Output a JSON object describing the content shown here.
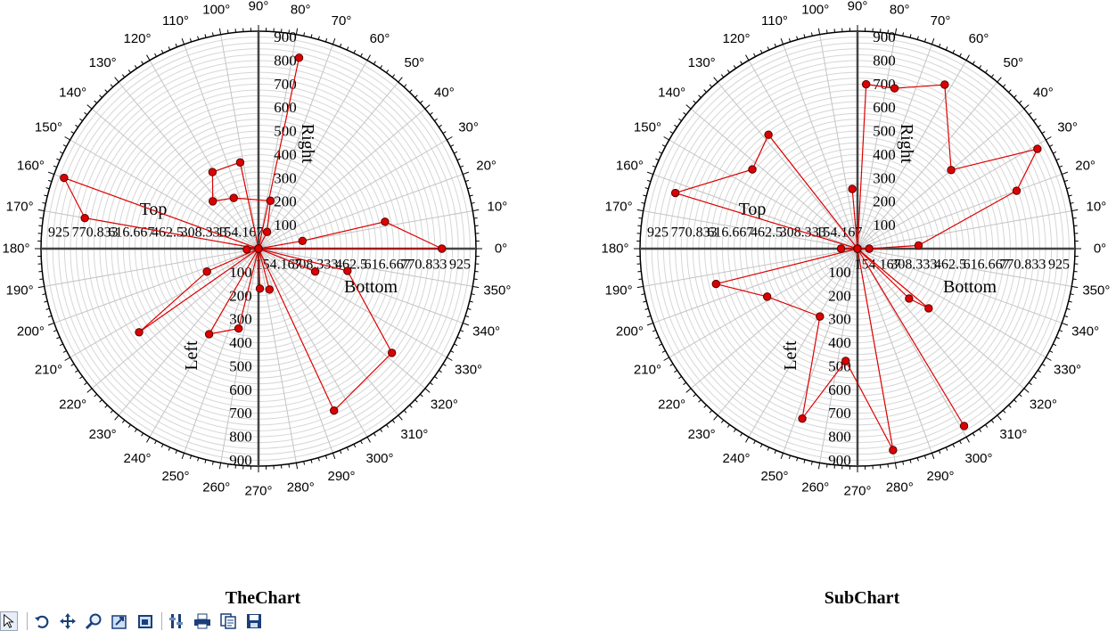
{
  "chart_data": [
    {
      "type": "polar-scatter-line",
      "title": "TheChart",
      "color": "#dd0000",
      "angle_labels": [
        "0°",
        "10°",
        "20°",
        "30°",
        "40°",
        "50°",
        "60°",
        "70°",
        "80°",
        "90°",
        "100°",
        "110°",
        "120°",
        "130°",
        "140°",
        "150°",
        "160°",
        "170°",
        "180°",
        "190°",
        "200°",
        "210°",
        "220°",
        "230°",
        "240°",
        "250°",
        "260°",
        "270°",
        "280°",
        "290°",
        "300°",
        "310°",
        "320°",
        "330°",
        "340°",
        "350°"
      ],
      "axes": {
        "right": {
          "title": "Right",
          "ticks": [
            "100",
            "200",
            "300",
            "400",
            "500",
            "600",
            "700",
            "800",
            "900"
          ]
        },
        "left": {
          "title": "Left",
          "ticks": [
            "100",
            "200",
            "300",
            "400",
            "500",
            "600",
            "700",
            "800",
            "900"
          ]
        },
        "top": {
          "title": "Top",
          "ticks": [
            "925",
            "770.833",
            "616.667",
            "462.5",
            "308.333",
            "154.167"
          ]
        },
        "bottom": {
          "title": "Bottom",
          "ticks": [
            "154.167",
            "308.333",
            "462.5",
            "616.667",
            "770.833",
            "925"
          ]
        }
      },
      "rmax": 925,
      "points": [
        {
          "theta": 0,
          "r": 0
        },
        {
          "theta": 63,
          "r": 80
        },
        {
          "theta": 76,
          "r": 210
        },
        {
          "theta": 116,
          "r": 240
        },
        {
          "theta": 134,
          "r": 280
        },
        {
          "theta": 121,
          "r": 380
        },
        {
          "theta": 102,
          "r": 375
        },
        {
          "theta": 0,
          "r": 0
        },
        {
          "theta": 160,
          "r": 880
        },
        {
          "theta": 170,
          "r": 750
        },
        {
          "theta": 0,
          "r": 0
        },
        {
          "theta": 78,
          "r": 830
        },
        {
          "theta": 0,
          "r": 0
        },
        {
          "theta": 10,
          "r": 190
        },
        {
          "theta": 12,
          "r": 550
        },
        {
          "theta": 0,
          "r": 780
        },
        {
          "theta": 0,
          "r": 0
        },
        {
          "theta": 184,
          "r": 50
        },
        {
          "theta": 0,
          "r": 0
        },
        {
          "theta": 204,
          "r": 240
        },
        {
          "theta": 215,
          "r": 620
        },
        {
          "theta": 0,
          "r": 0
        },
        {
          "theta": 240,
          "r": 420
        },
        {
          "theta": 256,
          "r": 350
        },
        {
          "theta": 0,
          "r": 0
        },
        {
          "theta": 272,
          "r": 170
        },
        {
          "theta": 0,
          "r": 0
        },
        {
          "theta": 346,
          "r": 390
        },
        {
          "theta": 322,
          "r": 720
        },
        {
          "theta": 295,
          "r": 760
        },
        {
          "theta": 0,
          "r": 0
        },
        {
          "theta": 338,
          "r": 260
        },
        {
          "theta": 0,
          "r": 0
        },
        {
          "theta": 285,
          "r": 180
        }
      ]
    },
    {
      "type": "polar-scatter-line",
      "title": "SubChart",
      "color": "#dd0000",
      "angle_labels": [
        "0°",
        "10°",
        "20°",
        "30°",
        "40°",
        "50°",
        "60°",
        "70°",
        "80°",
        "90°",
        "100°",
        "110°",
        "120°",
        "130°",
        "140°",
        "150°",
        "160°",
        "170°",
        "180°",
        "190°",
        "200°",
        "210°",
        "220°",
        "230°",
        "240°",
        "250°",
        "260°",
        "270°",
        "280°",
        "290°",
        "300°",
        "310°",
        "320°",
        "330°",
        "340°",
        "350°"
      ],
      "axes": {
        "right": {
          "title": "Right",
          "ticks": [
            "100",
            "200",
            "300",
            "400",
            "500",
            "600",
            "700",
            "800",
            "900"
          ]
        },
        "left": {
          "title": "Left",
          "ticks": [
            "100",
            "200",
            "300",
            "400",
            "500",
            "600",
            "700",
            "800",
            "900"
          ]
        },
        "top": {
          "title": "Top",
          "ticks": [
            "925",
            "770.833",
            "616.667",
            "462.5",
            "308.333",
            "154.167"
          ]
        },
        "bottom": {
          "title": "Bottom",
          "ticks": [
            "154.167",
            "308.333",
            "462.5",
            "616.667",
            "770.833",
            "925"
          ]
        }
      },
      "rmax": 925,
      "points": [
        {
          "theta": 0,
          "r": 0
        },
        {
          "theta": 95,
          "r": 255
        },
        {
          "theta": 0,
          "r": 0
        },
        {
          "theta": 128,
          "r": 615
        },
        {
          "theta": 143,
          "r": 560
        },
        {
          "theta": 163,
          "r": 810
        },
        {
          "theta": 0,
          "r": 0
        },
        {
          "theta": 180,
          "r": 70
        },
        {
          "theta": 0,
          "r": 0
        },
        {
          "theta": 0,
          "r": 0
        },
        {
          "theta": 87,
          "r": 700
        },
        {
          "theta": 77,
          "r": 700
        },
        {
          "theta": 62,
          "r": 790
        },
        {
          "theta": 40,
          "r": 520
        },
        {
          "theta": 29,
          "r": 875
        },
        {
          "theta": 20,
          "r": 720
        },
        {
          "theta": 3,
          "r": 260
        },
        {
          "theta": 0,
          "r": 50
        },
        {
          "theta": 0,
          "r": 0
        },
        {
          "theta": 194,
          "r": 620
        },
        {
          "theta": 208,
          "r": 435
        },
        {
          "theta": 241,
          "r": 330
        },
        {
          "theta": 252,
          "r": 760
        },
        {
          "theta": 264,
          "r": 480
        },
        {
          "theta": 280,
          "r": 870
        },
        {
          "theta": 0,
          "r": 0
        },
        {
          "theta": 301,
          "r": 880
        },
        {
          "theta": 0,
          "r": 0
        },
        {
          "theta": 316,
          "r": 305
        },
        {
          "theta": 320,
          "r": 395
        },
        {
          "theta": 0,
          "r": 0
        }
      ]
    }
  ],
  "toolbar": [
    {
      "icon": "pointer-icon"
    },
    {
      "icon": "undo-zoom-icon"
    },
    {
      "icon": "pan-icon"
    },
    {
      "icon": "zoom-icon"
    },
    {
      "icon": "zoom-box-icon"
    },
    {
      "icon": "fit-icon"
    },
    {
      "icon": "settings-icon"
    },
    {
      "icon": "print-icon"
    },
    {
      "icon": "copy-icon"
    },
    {
      "icon": "save-icon"
    }
  ]
}
